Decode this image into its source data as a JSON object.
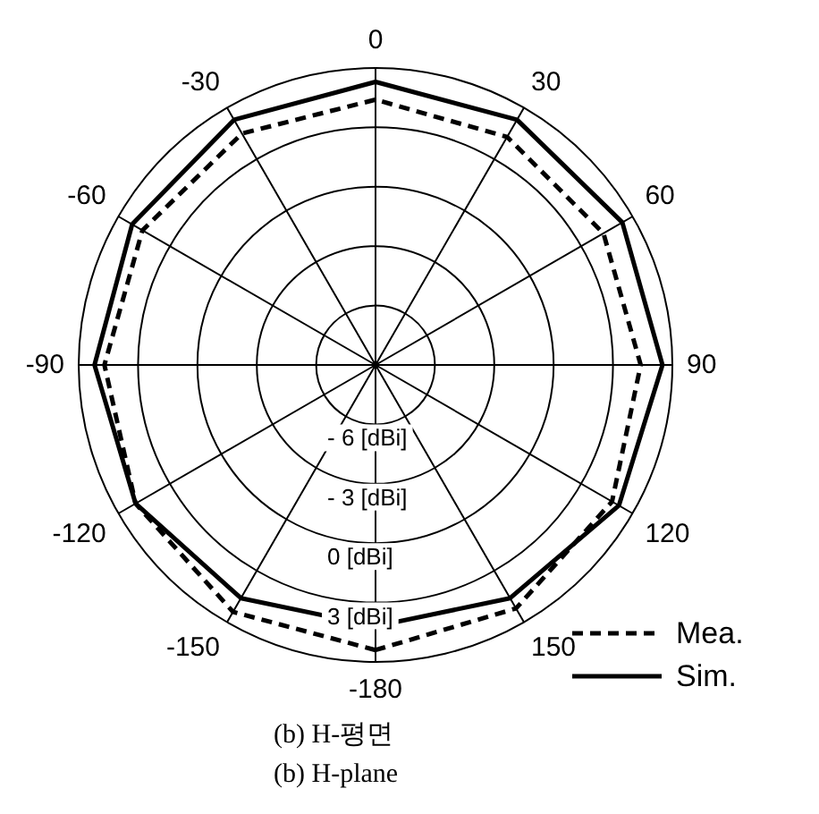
{
  "chart_data": {
    "type": "radar",
    "categories": [
      "0",
      "30",
      "60",
      "90",
      "120",
      "150",
      "-180",
      "-150",
      "-120",
      "-90",
      "-60",
      "-30"
    ],
    "ylim": [
      -9,
      6
    ],
    "yticks": [
      {
        "value": -6,
        "label": "- 6 [dBi]"
      },
      {
        "value": -3,
        "label": "- 3 [dBi]"
      },
      {
        "value": 0,
        "label": "0 [dBi]"
      },
      {
        "value": 3,
        "label": "3 [dBi]"
      }
    ],
    "series": [
      {
        "name": "Mea.",
        "color": "#000000",
        "line_style": "dashed",
        "values": [
          4.4,
          4.3,
          4.3,
          4.4,
          4.8,
          5.2,
          5.4,
          5.4,
          5.0,
          4.7,
          4.6,
          4.5
        ]
      },
      {
        "name": "Sim.",
        "color": "#000000",
        "line_style": "solid",
        "values": [
          5.3,
          5.3,
          5.4,
          5.5,
          5.2,
          4.6,
          4.2,
          4.6,
          5.0,
          5.2,
          5.2,
          5.3
        ]
      }
    ],
    "grid": true,
    "marker": "none",
    "legend": "bottom right",
    "annotations": [
      "(b) H-평면",
      "(b) H-plane"
    ]
  }
}
